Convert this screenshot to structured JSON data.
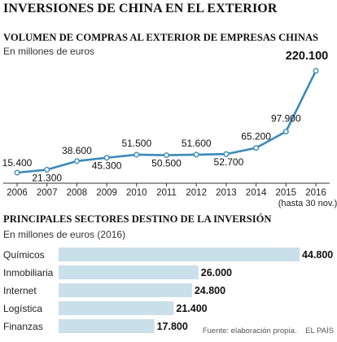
{
  "title": "INVERSIONES DE CHINA EN EL EXTERIOR",
  "colors": {
    "line": "#3b8ab8",
    "bar": "#c9dfe9",
    "text": "#222222"
  },
  "chart_data": [
    {
      "type": "line",
      "title": "VOLUMEN DE COMPRAS AL EXTERIOR DE EMPRESAS CHINAS",
      "subtitle": "En millones de euros",
      "x": [
        "2006",
        "2007",
        "2008",
        "2009",
        "2010",
        "2011",
        "2012",
        "2013",
        "2014",
        "2015",
        "2016"
      ],
      "x_note": "(hasta 30 nov.)",
      "values": [
        15400,
        21300,
        38600,
        45300,
        51500,
        50500,
        51600,
        52700,
        65200,
        97900,
        220100
      ],
      "labels": [
        "15.400",
        "21.300",
        "38.600",
        "45.300",
        "51.500",
        "50.500",
        "51.600",
        "52.700",
        "65.200",
        "97.900",
        "220.100"
      ],
      "grid": false
    },
    {
      "type": "bar",
      "title": "PRINCIPALES SECTORES DESTINO DE LA INVERSIÓN",
      "subtitle": "En millones de euros (2016)",
      "categories": [
        "Químicos",
        "Inmobiliaria",
        "Internet",
        "Logística",
        "Finanzas"
      ],
      "values": [
        44800,
        26000,
        24800,
        21400,
        17800
      ],
      "labels": [
        "44.800",
        "26.000",
        "24.800",
        "21.400",
        "17.800"
      ]
    }
  ],
  "footer": {
    "source": "Fuente: elaboración propia.",
    "brand": "EL PAÍS"
  }
}
